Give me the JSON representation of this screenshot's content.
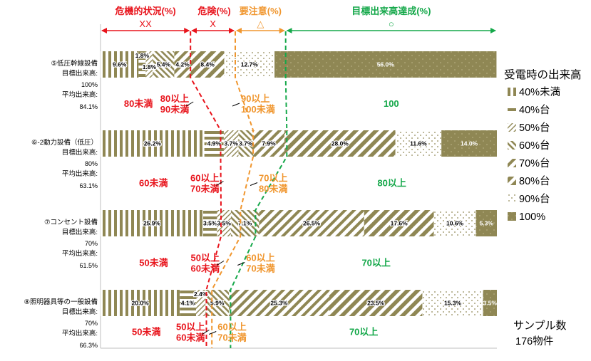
{
  "chart_data": {
    "type": "bar",
    "orientation": "horizontal",
    "stacked": true,
    "percent": true,
    "xlim": [
      0,
      100
    ],
    "legend_title": "受電時の出来高",
    "legend_position": "right",
    "series": [
      {
        "name": "40%未満",
        "color": "#8f8754",
        "pattern": "vstripe"
      },
      {
        "name": "40%台",
        "color": "#8f8754",
        "pattern": "hstripe"
      },
      {
        "name": "50%台",
        "color": "#8f8754",
        "pattern": "diag-thin"
      },
      {
        "name": "60%台",
        "color": "#8f8754",
        "pattern": "backdiag"
      },
      {
        "name": "70%台",
        "color": "#8f8754",
        "pattern": "diag-wide"
      },
      {
        "name": "80%台",
        "color": "#8f8754",
        "pattern": "diag-bold"
      },
      {
        "name": "90%台",
        "color": "#8f8754",
        "pattern": "dots"
      },
      {
        "name": "100%",
        "color": "#8f8754",
        "pattern": "solid"
      }
    ],
    "categories": [
      {
        "label": "⑤低圧幹線設備",
        "target_label": "目標出来高:",
        "target": "100%",
        "avg_label": "平均出来高:",
        "avg": "84.1%",
        "values": [
          9.6,
          1.8,
          1.8,
          5.4,
          4.2,
          8.4,
          12.7,
          56.0
        ],
        "labels": [
          "9.6%",
          "1.8%",
          "1.8%",
          "5.4%",
          "4.2%",
          "8.4%",
          "12.7%",
          "56.0%"
        ],
        "danger_text": "80未満",
        "risk_text_1": "80以上",
        "risk_text_2": "90未満",
        "caution_text_1": "90以上",
        "caution_text_2": "100未満",
        "ok_text": "100"
      },
      {
        "label": "⑥-2動力設備（低圧）",
        "target_label": "目標出来高:",
        "target": "80%",
        "avg_label": "平均出来高:",
        "avg": "63.1%",
        "values": [
          26.2,
          4.9,
          3.7,
          3.7,
          7.9,
          28.0,
          11.6,
          14.0
        ],
        "labels": [
          "26.2%",
          "4.9%",
          "3.7%",
          "3.7%",
          "7.9%",
          "28.0%",
          "11.6%",
          "14.0%"
        ],
        "danger_text": "60未満",
        "risk_text_1": "60以上",
        "risk_text_2": "70未満",
        "caution_text_1": "70以上",
        "caution_text_2": "80未満",
        "ok_text": "80以上"
      },
      {
        "label": "⑦コンセント設備",
        "target_label": "目標出来高:",
        "target": "70%",
        "avg_label": "平均出来高:",
        "avg": "61.5%",
        "values": [
          25.9,
          3.5,
          3.5,
          7.1,
          26.5,
          17.6,
          10.6,
          5.3
        ],
        "labels": [
          "25.9%",
          "3.5%",
          "3.5%",
          "7.1%",
          "26.5%",
          "17.6%",
          "10.6%",
          "5.3%"
        ],
        "danger_text": "50未満",
        "risk_text_1": "50以上",
        "risk_text_2": "60未満",
        "caution_text_1": "60以上",
        "caution_text_2": "70未満",
        "ok_text": "70以上"
      },
      {
        "label": "⑧照明器具等の一般設備",
        "target_label": "目標出来高:",
        "target": "70%",
        "avg_label": "平均出来高:",
        "avg": "66.3%",
        "values": [
          20.0,
          4.1,
          2.4,
          5.9,
          25.3,
          23.5,
          15.3,
          3.5
        ],
        "labels": [
          "20.0%",
          "4.1%",
          "2.4%",
          "5.9%",
          "25.3%",
          "23.5%",
          "15.3%",
          "3.5%"
        ],
        "danger_text": "50未満",
        "risk_text_1": "50以上",
        "risk_text_2": "60未満",
        "caution_text_1": "60以上",
        "caution_text_2": "70未満",
        "ok_text": "70以上"
      }
    ],
    "zones": [
      {
        "title": "危機的状況(%)",
        "mark": "XX",
        "color": "#e8141c"
      },
      {
        "title": "危険(%)",
        "mark": "X",
        "color": "#e8141c"
      },
      {
        "title": "要注意(%)",
        "mark": "△",
        "color": "#f0962e"
      },
      {
        "title": "目標出来高達成(%)",
        "mark": "○",
        "color": "#15a84a"
      }
    ],
    "boundaries": {
      "red": [
        22.7,
        30.3,
        30.4,
        26.7
      ],
      "orange": [
        34.0,
        38.5,
        35.3,
        28.1
      ],
      "green": [
        46.7,
        47.0,
        39.1,
        32.8
      ]
    },
    "sample_label": "サンプル数",
    "sample_value": "176物件"
  }
}
